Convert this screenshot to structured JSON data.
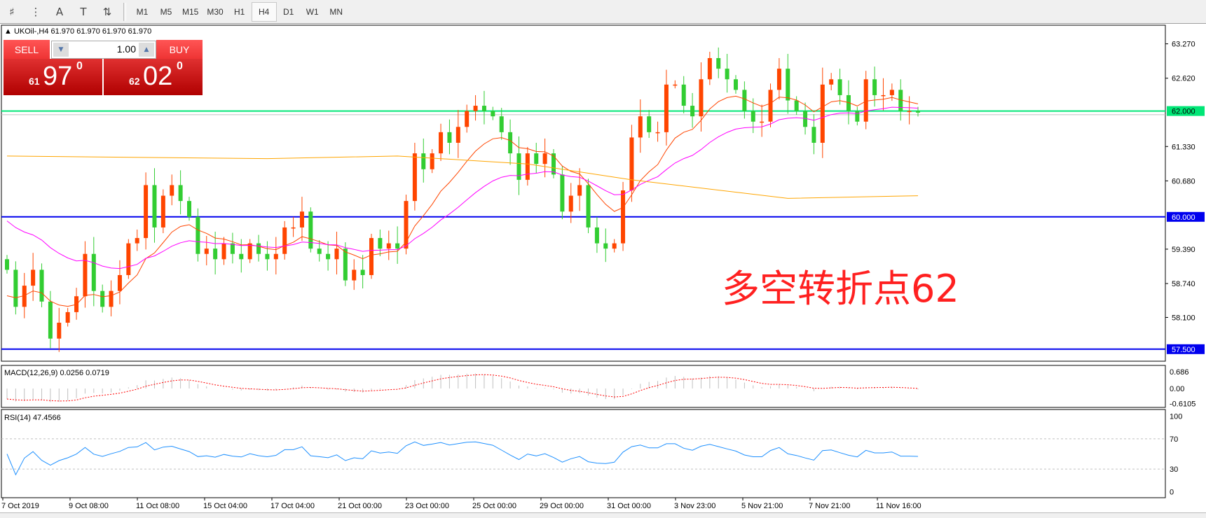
{
  "toolbar": {
    "icons": [
      "fibonacci-fan-icon",
      "fibonacci-grid-icon",
      "text-icon",
      "text-label-icon",
      "arrows-icon"
    ],
    "icon_glyphs": [
      "♯",
      "⋮",
      "A",
      "T",
      "⇅"
    ],
    "timeframes": [
      "M1",
      "M5",
      "M15",
      "M30",
      "H1",
      "H4",
      "D1",
      "W1",
      "MN"
    ],
    "active_timeframe": "H4"
  },
  "chart": {
    "symbol_line": "▲ UKOil-,H4  61.970 61.970 61.970 61.970",
    "annotation": "多空转折点62",
    "annotation_color": "#ff2020"
  },
  "one_click": {
    "sell_label": "SELL",
    "buy_label": "BUY",
    "lot": "1.00",
    "sell_small": "61",
    "sell_big": "97",
    "sell_sup": "0",
    "buy_small": "62",
    "buy_big": "02",
    "buy_sup": "0"
  },
  "chart_data": {
    "type": "candlestick",
    "price_axis": {
      "min": 57.2,
      "max": 63.5,
      "ticks": [
        "63.270",
        "62.620",
        "61.330",
        "60.680",
        "59.390",
        "58.740",
        "58.100"
      ]
    },
    "levels": [
      {
        "value": 62.0,
        "label": "62.000",
        "color": "#00e676",
        "text_color": "#000000"
      },
      {
        "value": 60.0,
        "label": "60.000",
        "color": "#0000ee",
        "text_color": "#ffffff"
      },
      {
        "value": 57.5,
        "label": "57.500",
        "color": "#0000ee",
        "text_color": "#ffffff"
      }
    ],
    "current_price": 61.97,
    "colors": {
      "bull": "#ff4500",
      "bear": "#32cd32",
      "ma_fast": "#ff4500",
      "ma_mid": "#ff00ff",
      "ma_slow": "#ffa500",
      "rsi": "#1e90ff",
      "macd_hist": "#c0c0c0",
      "macd_signal": "#ff0000"
    },
    "closes": [
      59.0,
      58.3,
      58.7,
      59.0,
      58.4,
      57.7,
      58.0,
      58.2,
      58.5,
      59.3,
      58.6,
      58.3,
      58.6,
      58.9,
      59.5,
      59.6,
      60.6,
      59.8,
      60.4,
      60.6,
      60.3,
      60.0,
      59.3,
      59.4,
      59.2,
      59.5,
      59.3,
      59.2,
      59.5,
      59.3,
      59.2,
      59.3,
      59.8,
      59.8,
      60.1,
      59.4,
      59.3,
      59.2,
      59.4,
      58.8,
      59.0,
      58.9,
      59.6,
      59.4,
      59.5,
      59.4,
      60.3,
      61.2,
      60.9,
      61.2,
      61.6,
      61.4,
      61.7,
      62.0,
      62.1,
      62.0,
      61.9,
      61.6,
      61.2,
      60.7,
      61.2,
      61.0,
      61.2,
      60.8,
      60.1,
      60.4,
      60.6,
      59.8,
      59.5,
      59.4,
      59.5,
      60.5,
      61.5,
      61.9,
      61.6,
      61.6,
      62.5,
      62.5,
      62.1,
      61.9,
      62.6,
      63.0,
      62.8,
      62.6,
      62.4,
      62.0,
      61.8,
      61.8,
      62.4,
      62.8,
      62.2,
      62.0,
      61.7,
      61.4,
      62.5,
      62.6,
      62.3,
      62.0,
      61.8,
      62.6,
      62.3,
      62.3,
      62.4,
      62.0,
      62.0,
      61.97
    ],
    "ma_slow": [
      [
        0,
        61.15
      ],
      [
        30,
        61.1
      ],
      [
        45,
        61.15
      ],
      [
        60,
        61.0
      ],
      [
        72,
        60.7
      ],
      [
        90,
        60.35
      ],
      [
        105,
        60.4
      ]
    ],
    "time_labels": [
      "7 Oct 2019",
      "9 Oct 08:00",
      "11 Oct 08:00",
      "15 Oct 04:00",
      "17 Oct 04:00",
      "21 Oct 00:00",
      "23 Oct 00:00",
      "25 Oct 00:00",
      "29 Oct 00:00",
      "31 Oct 00:00",
      "3 Nov 23:00",
      "5 Nov 21:00",
      "7 Nov 21:00",
      "11 Nov 16:00"
    ],
    "macd": {
      "label": "MACD(12,26,9) 0.0256 0.0719",
      "ticks": [
        "0.686",
        "0.00",
        "-0.6105"
      ],
      "range": [
        -0.6105,
        0.686
      ]
    },
    "rsi": {
      "label": "RSI(14) 47.4566",
      "ticks": [
        "100",
        "70",
        "30",
        "0"
      ],
      "levels": [
        70,
        30
      ],
      "range": [
        0,
        100
      ]
    }
  }
}
